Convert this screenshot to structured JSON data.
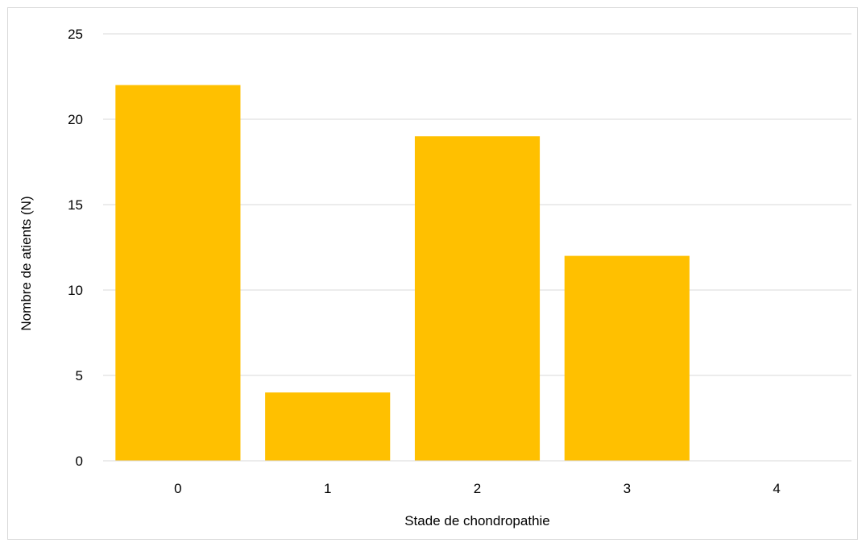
{
  "chart_data": {
    "type": "bar",
    "categories": [
      "0",
      "1",
      "2",
      "3",
      "4"
    ],
    "values": [
      22,
      4,
      19,
      12,
      0
    ],
    "title": "",
    "xlabel": "Stade de chondropathie",
    "ylabel": "Nombre de atients (N)",
    "ylim": [
      0,
      25
    ],
    "yticks": [
      "0",
      "5",
      "10",
      "15",
      "20",
      "25"
    ],
    "grid": true,
    "legend": "none"
  },
  "colors": {
    "bar": "#ffc000",
    "grid": "#d9d9d9",
    "axis": "#d9d9d9",
    "text": "#000000"
  }
}
